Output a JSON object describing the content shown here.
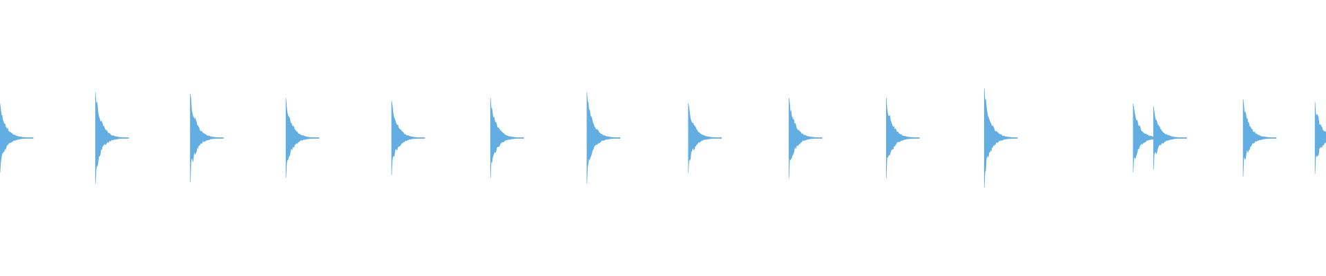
{
  "chart_data": {
    "type": "waveform",
    "color": "#62aee2",
    "xlim": [
      0,
      100
    ],
    "ylim": [
      -1,
      1
    ],
    "x": [
      0,
      7.2,
      14.35,
      21.56,
      29.53,
      36.99,
      44.26,
      51.91,
      59.5,
      66.84,
      74.23,
      85.46,
      86.99,
      93.75,
      99.17
    ],
    "values": [
      0.25,
      0.33,
      0.32,
      0.29,
      0.27,
      0.29,
      0.33,
      0.25,
      0.29,
      0.29,
      0.36,
      0.25,
      0.23,
      0.28,
      0.26
    ]
  }
}
